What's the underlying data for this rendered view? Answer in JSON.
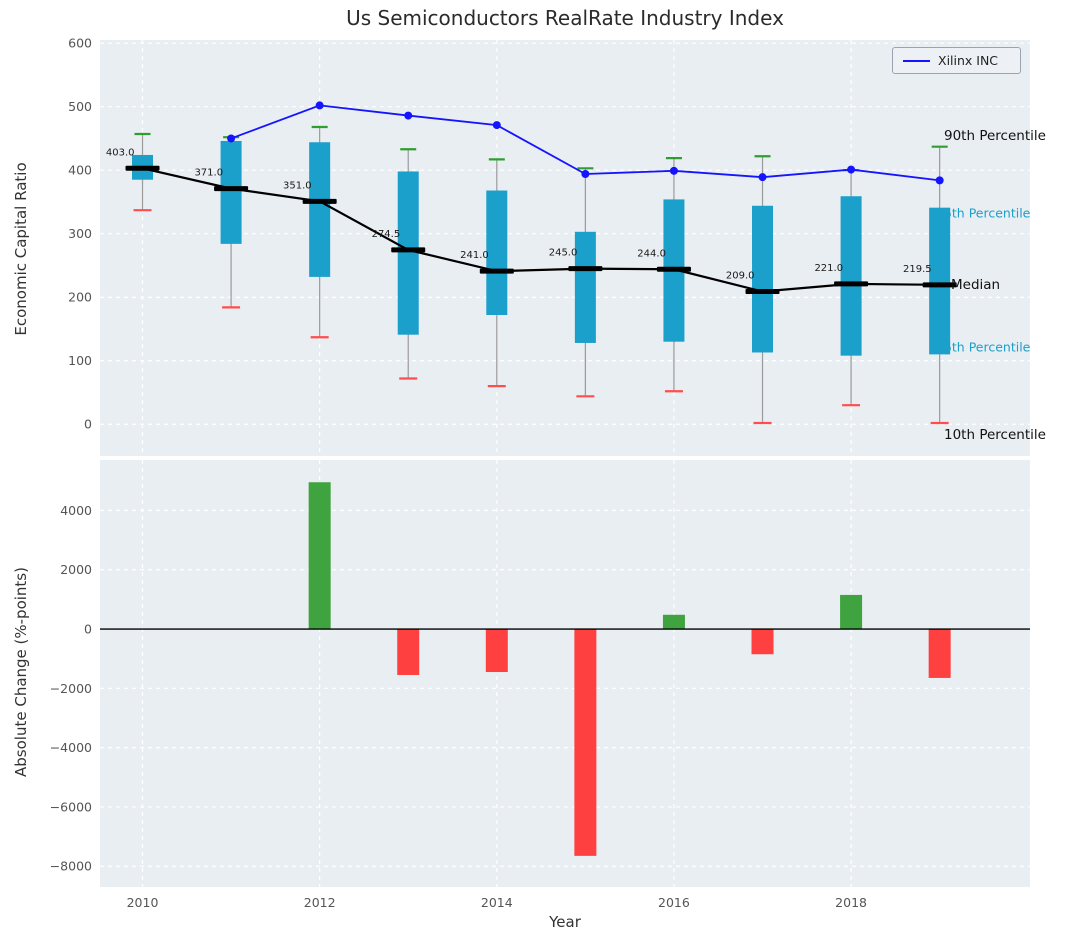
{
  "title": "Us Semiconductors RealRate Industry Index",
  "legend": {
    "label": "Xilinx INC"
  },
  "annotations": {
    "p90": "90th Percentile",
    "p75": "75th Percentile",
    "median": "Median",
    "p25": "25th Percentile",
    "p10": "10th Percentile"
  },
  "colors": {
    "panel_bg": "#e9eef2",
    "grid": "#ffffff",
    "box_fill": "#1b9fcb",
    "whisker": "#9a9a9a",
    "cap_top": "#2e9e2e",
    "cap_bottom": "#ff4d4d",
    "median": "#000000",
    "line": "#1414ff",
    "bar_up": "#3fa33f",
    "bar_down": "#ff4040",
    "annotation_teal": "#1b9fcb",
    "annotation_black": "#111111",
    "tick": "#555555"
  },
  "chart_data": [
    {
      "type": "boxplot+line",
      "title": "Us Semiconductors RealRate Industry Index",
      "ylabel": "Economic Capital Ratio",
      "ylim": [
        -50,
        605
      ],
      "yticks": [
        0,
        100,
        200,
        300,
        400,
        500,
        600
      ],
      "grid": "on",
      "years": [
        2010,
        2011,
        2012,
        2013,
        2014,
        2015,
        2016,
        2017,
        2018,
        2019
      ],
      "box": {
        "median": [
          403,
          371,
          351,
          274.5,
          241,
          245,
          244,
          209,
          221,
          219.5
        ],
        "q1": [
          385,
          284,
          232,
          141,
          172,
          128,
          130,
          113,
          108,
          110
        ],
        "q3": [
          424,
          446,
          444,
          398,
          368,
          303,
          354,
          344,
          359,
          341
        ],
        "p10": [
          337,
          184,
          137,
          72,
          60,
          44,
          52,
          2,
          30,
          2
        ],
        "p90": [
          457,
          452,
          468,
          433,
          417,
          403,
          419,
          422,
          400,
          437
        ]
      },
      "median_labels": [
        "403.0",
        "371.0",
        "351.0",
        "274.5",
        "241.0",
        "245.0",
        "244.0",
        "209.0",
        "221.0",
        "219.5"
      ],
      "line_series": {
        "name": "Xilinx INC",
        "x": [
          2011,
          2012,
          2013,
          2014,
          2015,
          2016,
          2017,
          2018,
          2019
        ],
        "y": [
          450,
          502,
          486,
          471,
          394,
          399,
          389,
          401,
          384
        ]
      },
      "legend_position": "upper right"
    },
    {
      "type": "bar",
      "ylabel": "Absolute Change (%-points)",
      "xlabel": "Year",
      "ylim": [
        -8700,
        5700
      ],
      "yticks": [
        -8000,
        -6000,
        -4000,
        -2000,
        0,
        2000,
        4000
      ],
      "xticks": [
        2010,
        2012,
        2014,
        2016,
        2018
      ],
      "grid": "on",
      "years": [
        2010,
        2011,
        2012,
        2013,
        2014,
        2015,
        2016,
        2017,
        2018,
        2019
      ],
      "values": [
        null,
        null,
        4950,
        -1550,
        -1450,
        -7650,
        480,
        -850,
        1150,
        -1650
      ]
    }
  ]
}
